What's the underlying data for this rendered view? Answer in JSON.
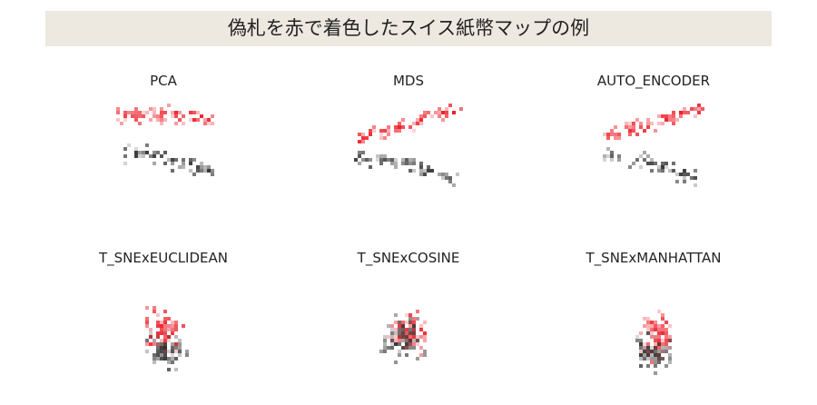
{
  "page": {
    "title": "偽札を赤で着色したスイス紙幣マップの例"
  },
  "chart_data": [
    {
      "type": "heatmap",
      "title": "PCA",
      "grid": false,
      "xlabel": "",
      "ylabel": "",
      "seed": 11,
      "clusters": [
        {
          "color": "#ee1e28",
          "points": 80,
          "x": [
            0.02,
            0.95
          ],
          "y": [
            0.02,
            0.28
          ],
          "arc": "up",
          "spread": 0.1
        },
        {
          "color": "#333333",
          "points": 70,
          "x": [
            0.08,
            0.95
          ],
          "y": [
            0.4,
            0.72
          ],
          "arc": "down",
          "spread": 0.1
        }
      ]
    },
    {
      "type": "heatmap",
      "title": "MDS",
      "grid": false,
      "xlabel": "",
      "ylabel": "",
      "seed": 23,
      "clusters": [
        {
          "color": "#ee1e28",
          "points": 80,
          "x": [
            0.02,
            0.98
          ],
          "y": [
            0.05,
            0.45
          ],
          "arc": "rise",
          "spread": 0.1
        },
        {
          "color": "#333333",
          "points": 70,
          "x": [
            0.02,
            0.95
          ],
          "y": [
            0.45,
            0.8
          ],
          "arc": "down",
          "spread": 0.09
        }
      ]
    },
    {
      "type": "heatmap",
      "title": "AUTO_ENCODER",
      "grid": false,
      "xlabel": "",
      "ylabel": "",
      "seed": 37,
      "clusters": [
        {
          "color": "#ee1e28",
          "points": 80,
          "x": [
            0.05,
            0.95
          ],
          "y": [
            0.05,
            0.4
          ],
          "arc": "rise",
          "spread": 0.1
        },
        {
          "color": "#333333",
          "points": 70,
          "x": [
            0.05,
            0.9
          ],
          "y": [
            0.45,
            0.78
          ],
          "arc": "down",
          "spread": 0.09
        }
      ]
    },
    {
      "type": "heatmap",
      "title": "T_SNExEUCLIDEAN",
      "grid": false,
      "xlabel": "",
      "ylabel": "",
      "seed": 41,
      "clusters": [
        {
          "color": "#ee1e28",
          "points": 80,
          "center": [
            0.5,
            0.5
          ],
          "radius": [
            0.22,
            0.3
          ],
          "spread": 0.05
        },
        {
          "color": "#333333",
          "points": 70,
          "center": [
            0.52,
            0.68
          ],
          "radius": [
            0.25,
            0.22
          ],
          "spread": 0.05
        }
      ]
    },
    {
      "type": "heatmap",
      "title": "T_SNExCOSINE",
      "grid": false,
      "xlabel": "",
      "ylabel": "",
      "seed": 53,
      "clusters": [
        {
          "color": "#ee1e28",
          "points": 80,
          "center": [
            0.5,
            0.52
          ],
          "radius": [
            0.25,
            0.25
          ],
          "spread": 0.05
        },
        {
          "color": "#333333",
          "points": 70,
          "center": [
            0.45,
            0.58
          ],
          "radius": [
            0.3,
            0.28
          ],
          "spread": 0.05
        }
      ]
    },
    {
      "type": "heatmap",
      "title": "T_SNExMANHATTAN",
      "grid": false,
      "xlabel": "",
      "ylabel": "",
      "seed": 67,
      "clusters": [
        {
          "color": "#ee1e28",
          "points": 80,
          "center": [
            0.55,
            0.55
          ],
          "radius": [
            0.2,
            0.3
          ],
          "spread": 0.05
        },
        {
          "color": "#333333",
          "points": 70,
          "center": [
            0.5,
            0.68
          ],
          "radius": [
            0.22,
            0.22
          ],
          "spread": 0.05
        }
      ]
    }
  ]
}
